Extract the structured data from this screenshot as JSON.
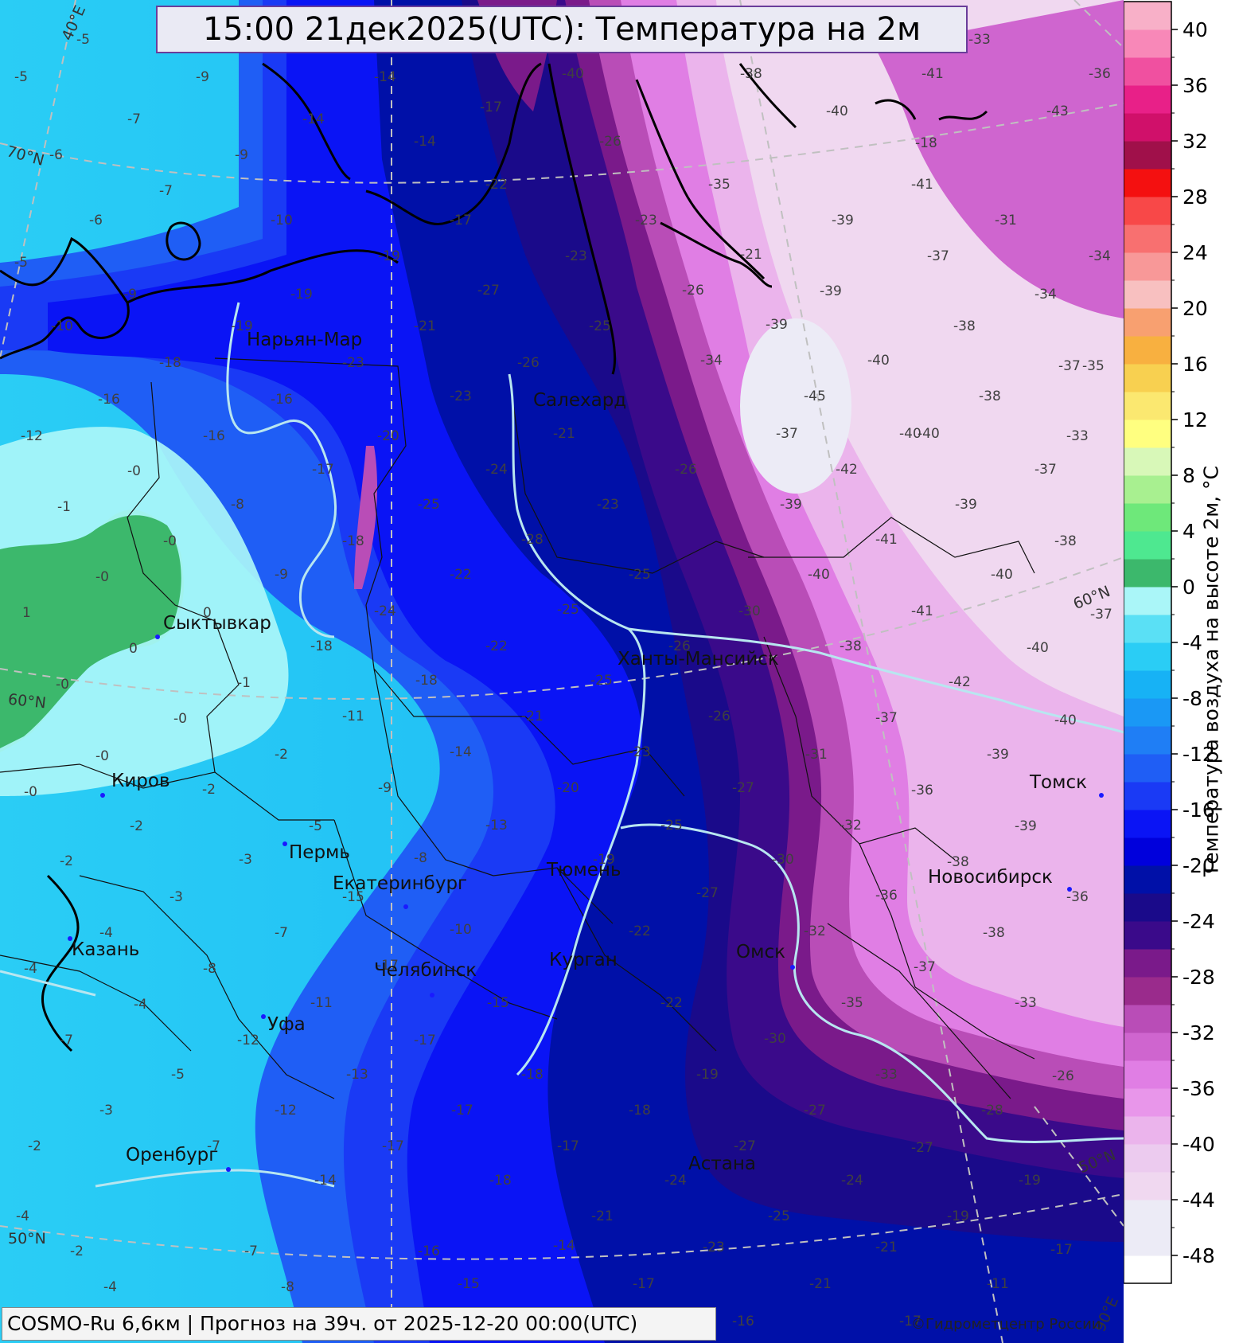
{
  "title": "15:00 21дек2025(UTC): Температура на 2м",
  "footer": "COSMO-Ru 6,6км | Прогноз на  39ч. от 2025-12-20 00:00(UTC)",
  "copyright": "©Гидрометцентр России",
  "colorbar": {
    "label": "Температура воздуха на высоте 2м, °C",
    "ticks": [
      "40",
      "36",
      "32",
      "28",
      "24",
      "20",
      "16",
      "12",
      "8",
      "4",
      "0",
      "-4",
      "-8",
      "-12",
      "-16",
      "-20",
      "-24",
      "-28",
      "-32",
      "-36",
      "-40",
      "-44",
      "-48"
    ],
    "tick_values": [
      40,
      36,
      32,
      28,
      24,
      20,
      16,
      12,
      8,
      4,
      0,
      -4,
      -8,
      -12,
      -16,
      -20,
      -24,
      -28,
      -32,
      -36,
      -40,
      -44,
      -48
    ],
    "range": [
      -50,
      42
    ],
    "bins": [
      {
        "from": -50,
        "to": -48,
        "color": "#ffffff"
      },
      {
        "from": -48,
        "to": -44,
        "color": "#ecebf6"
      },
      {
        "from": -44,
        "to": -42,
        "color": "#f0d8f0"
      },
      {
        "from": -42,
        "to": -40,
        "color": "#eccbef"
      },
      {
        "from": -40,
        "to": -38,
        "color": "#ebb4ec"
      },
      {
        "from": -38,
        "to": -36,
        "color": "#e896ea"
      },
      {
        "from": -36,
        "to": -34,
        "color": "#e07ee4"
      },
      {
        "from": -34,
        "to": -32,
        "color": "#cf65cf"
      },
      {
        "from": -32,
        "to": -30,
        "color": "#b94db7"
      },
      {
        "from": -30,
        "to": -28,
        "color": "#9a2b8c"
      },
      {
        "from": -28,
        "to": -26,
        "color": "#7a1a8a"
      },
      {
        "from": -26,
        "to": -24,
        "color": "#3a0a8a"
      },
      {
        "from": -24,
        "to": -22,
        "color": "#1a0a8a"
      },
      {
        "from": -22,
        "to": -20,
        "color": "#0010a8"
      },
      {
        "from": -20,
        "to": -18,
        "color": "#0000dc"
      },
      {
        "from": -18,
        "to": -16,
        "color": "#0a14f5"
      },
      {
        "from": -16,
        "to": -14,
        "color": "#1a3af5"
      },
      {
        "from": -14,
        "to": -12,
        "color": "#1f5ef5"
      },
      {
        "from": -12,
        "to": -10,
        "color": "#1f7ef5"
      },
      {
        "from": -10,
        "to": -8,
        "color": "#1a98f5"
      },
      {
        "from": -8,
        "to": -6,
        "color": "#17b2f5"
      },
      {
        "from": -6,
        "to": -4,
        "color": "#2acdf5"
      },
      {
        "from": -4,
        "to": -2,
        "color": "#5ae0f5"
      },
      {
        "from": -2,
        "to": 0,
        "color": "#aaf6f8"
      },
      {
        "from": 0,
        "to": 2,
        "color": "#3cb86c"
      },
      {
        "from": 2,
        "to": 4,
        "color": "#4ee890"
      },
      {
        "from": 4,
        "to": 6,
        "color": "#6ee87a"
      },
      {
        "from": 6,
        "to": 8,
        "color": "#a8f090"
      },
      {
        "from": 8,
        "to": 10,
        "color": "#d8f8b8"
      },
      {
        "from": 10,
        "to": 12,
        "color": "#ffff80"
      },
      {
        "from": 12,
        "to": 14,
        "color": "#fbe870"
      },
      {
        "from": 14,
        "to": 16,
        "color": "#f8d050"
      },
      {
        "from": 16,
        "to": 18,
        "color": "#f8b040"
      },
      {
        "from": 18,
        "to": 20,
        "color": "#f8a070"
      },
      {
        "from": 20,
        "to": 22,
        "color": "#f8c0c0"
      },
      {
        "from": 22,
        "to": 24,
        "color": "#f89898"
      },
      {
        "from": 24,
        "to": 26,
        "color": "#f87070"
      },
      {
        "from": 26,
        "to": 28,
        "color": "#f84848"
      },
      {
        "from": 28,
        "to": 30,
        "color": "#f41010"
      },
      {
        "from": 30,
        "to": 32,
        "color": "#a0104a"
      },
      {
        "from": 32,
        "to": 34,
        "color": "#d0106a"
      },
      {
        "from": 34,
        "to": 36,
        "color": "#e82088"
      },
      {
        "from": 36,
        "to": 38,
        "color": "#f050a0"
      },
      {
        "from": 38,
        "to": 40,
        "color": "#f888b8"
      },
      {
        "from": 40,
        "to": 42,
        "color": "#f8b0c8"
      }
    ]
  },
  "cities": [
    {
      "name": "Нарьян-Мар"
    },
    {
      "name": "Салехард"
    },
    {
      "name": "Сыктывкар"
    },
    {
      "name": "Ханты-Мансийск"
    },
    {
      "name": "Киров"
    },
    {
      "name": "Пермь"
    },
    {
      "name": "Екатеринбург"
    },
    {
      "name": "Тюмень"
    },
    {
      "name": "Томск"
    },
    {
      "name": "Новосибирск"
    },
    {
      "name": "Казань"
    },
    {
      "name": "Челябинск"
    },
    {
      "name": "Курган"
    },
    {
      "name": "Омск"
    },
    {
      "name": "Уфа"
    },
    {
      "name": "Оренбург"
    },
    {
      "name": "Астана"
    }
  ],
  "graticule_labels": [
    "40°E",
    "70°N",
    "60°N",
    "60°N",
    "50°N",
    "50°N",
    "90°E"
  ],
  "temperature_values": [
    "-5",
    "-9",
    "-14",
    "-17",
    "-40",
    "-26",
    "-38",
    "-41",
    "-33",
    "-36",
    "-5",
    "-7",
    "-14",
    "-14",
    "-22",
    "-35",
    "-40",
    "-41",
    "-43",
    "-6",
    "-9",
    "-7",
    "-10",
    "-17",
    "-23",
    "-39",
    "-31",
    "-34",
    "-6",
    "-5",
    "-10",
    "-19",
    "-23",
    "-39",
    "-37",
    "-34",
    "-37",
    "-9",
    "-19",
    "-27",
    "-26",
    "-21",
    "-18",
    "-19",
    "-21",
    "-25",
    "-34",
    "-39",
    "-40",
    "-38",
    "-35",
    "-18",
    "-23",
    "-26",
    "-45",
    "-40",
    "-38",
    "-16",
    "-16",
    "-23",
    "-21",
    "-37",
    "-40",
    "-33",
    "-12",
    "-16",
    "-20",
    "-24",
    "-26",
    "-42",
    "-37",
    "-0",
    "-17",
    "-25",
    "-23",
    "-39",
    "-39",
    "-1",
    "-8",
    "-0",
    "-18",
    "-28",
    "-41",
    "-38",
    "-0",
    "-9",
    "-22",
    "-25",
    "-40",
    "-40",
    "1",
    "0",
    "-24",
    "-25",
    "-30",
    "-41",
    "-37",
    "0",
    "-18",
    "-22",
    "-26",
    "-38",
    "-40",
    "-0",
    "-1",
    "-18",
    "-25",
    "-42",
    "-0",
    "-11",
    "-21",
    "-26",
    "-37",
    "-40",
    "-0",
    "-2",
    "-14",
    "-23",
    "-31",
    "-39",
    "-0",
    "-2",
    "-9",
    "-20",
    "-27",
    "-36",
    "-2",
    "-5",
    "-13",
    "-25",
    "-32",
    "-39",
    "-2",
    "-3",
    "-8",
    "-19",
    "-30",
    "-38",
    "-3",
    "-15",
    "-27",
    "-36",
    "-36",
    "-4",
    "-7",
    "-10",
    "-22",
    "-32",
    "-38",
    "-4",
    "-8",
    "-17",
    "-37",
    "-4",
    "-11",
    "-15",
    "-22",
    "-35",
    "-33",
    "-7",
    "-12",
    "-17",
    "-30",
    "-5",
    "-13",
    "-18",
    "-19",
    "-33",
    "-26",
    "-3",
    "-12",
    "-17",
    "-18",
    "-27",
    "-28",
    "-2",
    "-7",
    "-17",
    "-17",
    "-27",
    "-27",
    "-14",
    "-18",
    "-24",
    "-24",
    "-19",
    "-4",
    "-21",
    "-25",
    "-19",
    "-2",
    "-7",
    "-16",
    "-14",
    "-23",
    "-21",
    "-17",
    "-4",
    "-8",
    "-15",
    "-17",
    "-21",
    "-11",
    "-18",
    "-16",
    "-17"
  ]
}
